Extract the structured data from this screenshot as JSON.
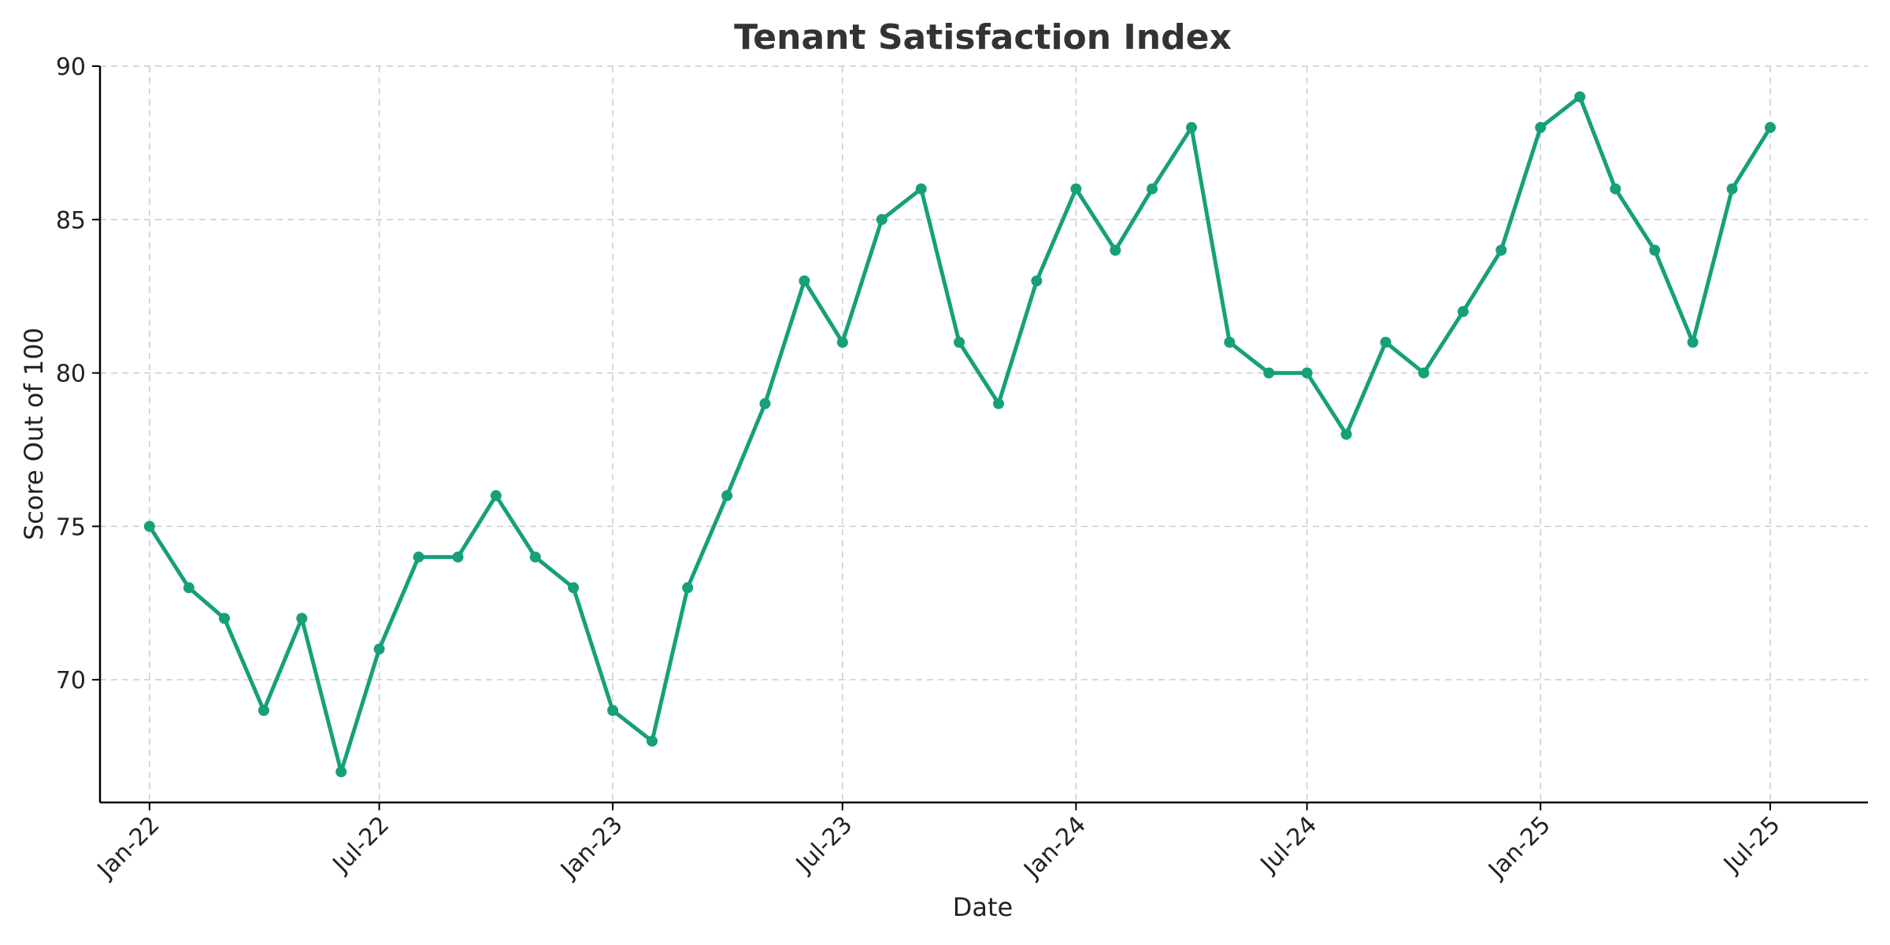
{
  "chart_data": {
    "type": "line",
    "title": "Tenant Satisfaction Index",
    "xlabel": "Date",
    "ylabel": "Score Out of 100",
    "x": [
      "2022-01",
      "2022-02",
      "2022-03",
      "2022-04",
      "2022-05",
      "2022-06",
      "2022-07",
      "2022-08",
      "2022-09",
      "2022-10",
      "2022-11",
      "2022-12",
      "2023-01",
      "2023-02",
      "2023-03",
      "2023-04",
      "2023-05",
      "2023-06",
      "2023-07",
      "2023-08",
      "2023-09",
      "2023-10",
      "2023-11",
      "2023-12",
      "2024-01",
      "2024-02",
      "2024-03",
      "2024-04",
      "2024-05",
      "2024-06",
      "2024-07",
      "2024-08",
      "2024-09",
      "2024-10",
      "2024-11",
      "2024-12",
      "2025-01",
      "2025-02",
      "2025-03",
      "2025-04",
      "2025-05",
      "2025-06",
      "2025-07"
    ],
    "series": [
      {
        "values": [
          75,
          73,
          72,
          69,
          72,
          67,
          71,
          74,
          74,
          76,
          74,
          73,
          69,
          68,
          73,
          76,
          79,
          83,
          81,
          85,
          86,
          81,
          79,
          83,
          86,
          84,
          86,
          88,
          81,
          80,
          80,
          78,
          81,
          80,
          82,
          84,
          88,
          89,
          86,
          84,
          81,
          86,
          88
        ]
      }
    ],
    "xticks": [
      {
        "label": "Jan-22",
        "date": "2022-01"
      },
      {
        "label": "Jul-22",
        "date": "2022-07"
      },
      {
        "label": "Jan-23",
        "date": "2023-01"
      },
      {
        "label": "Jul-23",
        "date": "2023-07"
      },
      {
        "label": "Jan-24",
        "date": "2024-01"
      },
      {
        "label": "Jul-24",
        "date": "2024-07"
      },
      {
        "label": "Jan-25",
        "date": "2025-01"
      },
      {
        "label": "Jul-25",
        "date": "2025-07"
      }
    ],
    "yticks": [
      70,
      75,
      80,
      85,
      90
    ],
    "ylim": [
      66,
      90
    ],
    "xlim": [
      "2021-11-23",
      "2025-09-16"
    ],
    "grid": true,
    "legend": "none",
    "color": "#16a07a"
  }
}
